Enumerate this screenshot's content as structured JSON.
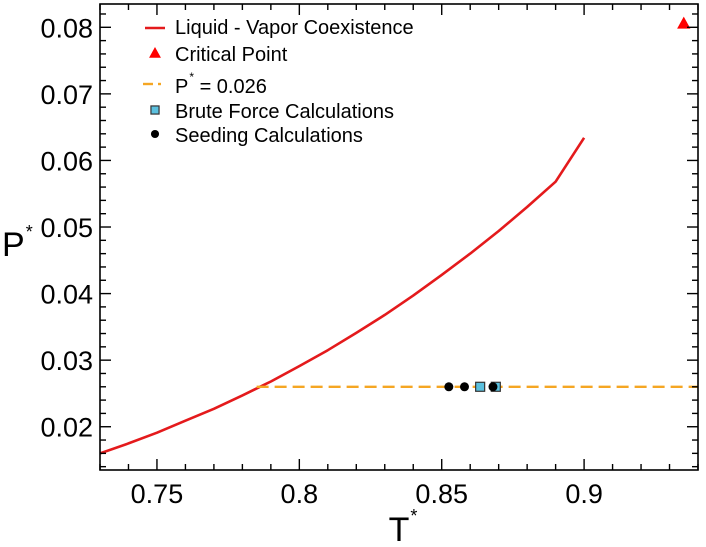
{
  "chart_data": {
    "type": "line",
    "xlabel": "T",
    "xlabel_sup": "*",
    "ylabel": "P",
    "ylabel_sup": "*",
    "xlim": [
      0.73,
      0.94
    ],
    "ylim": [
      0.0135,
      0.0835
    ],
    "x_major_ticks": [
      0.75,
      0.8,
      0.85,
      0.9
    ],
    "x_tick_labels": [
      "0.75",
      "0.8",
      "0.85",
      "0.9"
    ],
    "x_minor_step": 0.01,
    "y_major_ticks": [
      0.02,
      0.03,
      0.04,
      0.05,
      0.06,
      0.07,
      0.08
    ],
    "y_tick_labels": [
      "0.02",
      "0.03",
      "0.04",
      "0.05",
      "0.06",
      "0.07",
      "0.08"
    ],
    "y_minor_step": 0.002,
    "grid": false,
    "legend_position": "top-left",
    "series": [
      {
        "name": "Liquid - Vapor Coexistence",
        "kind": "line",
        "color": "#e41a1c",
        "x": [
          0.73,
          0.74,
          0.75,
          0.76,
          0.77,
          0.78,
          0.79,
          0.8,
          0.81,
          0.82,
          0.83,
          0.84,
          0.85,
          0.86,
          0.87,
          0.88,
          0.89,
          0.9
        ],
        "y": [
          0.016,
          0.0175,
          0.0191,
          0.0209,
          0.0227,
          0.0247,
          0.0268,
          0.0291,
          0.0315,
          0.0341,
          0.0368,
          0.0397,
          0.0428,
          0.046,
          0.0494,
          0.053,
          0.0568,
          0.0634
        ]
      },
      {
        "name": "Critical Point",
        "kind": "triangle",
        "color": "#ff0000",
        "x": [
          0.935
        ],
        "y": [
          0.0806
        ]
      },
      {
        "name": "P",
        "name_sup": "*",
        "name_suffix": " = 0.026",
        "kind": "dashed",
        "color": "#f5a623",
        "x": [
          0.785,
          0.94
        ],
        "y": [
          0.026,
          0.026
        ]
      },
      {
        "name": "Brute Force Calculations",
        "kind": "square",
        "color": "#5bc0de",
        "x": [
          0.8635,
          0.869
        ],
        "y": [
          0.026,
          0.026
        ]
      },
      {
        "name": "Seeding Calculations",
        "kind": "circle",
        "color": "#000000",
        "x": [
          0.8525,
          0.858,
          0.868
        ],
        "y": [
          0.026,
          0.026,
          0.026
        ]
      }
    ]
  }
}
